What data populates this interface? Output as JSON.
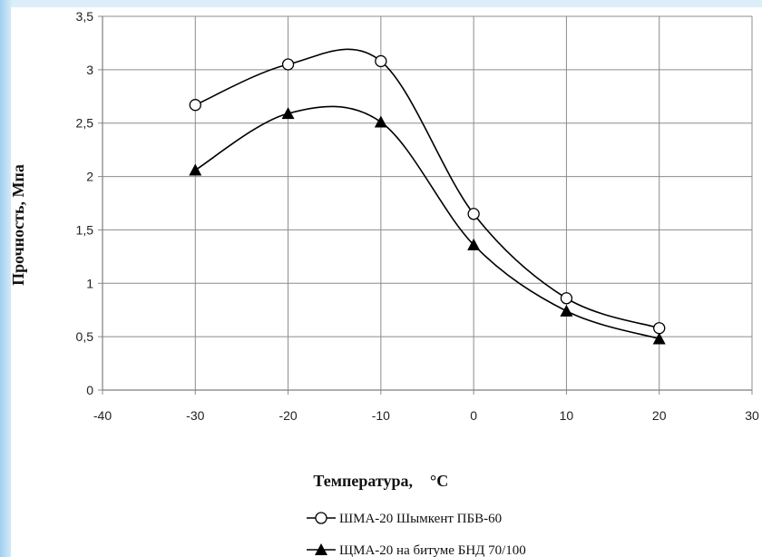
{
  "chart_data": {
    "type": "line",
    "xlabel": "Температура,",
    "xlabel_unit": "°С",
    "ylabel": "Прочность, Мпа",
    "xlim": [
      -40,
      30
    ],
    "ylim": [
      0,
      3.5
    ],
    "x_ticks": [
      "-40",
      "-30",
      "-20",
      "-10",
      "0",
      "10",
      "20",
      "30"
    ],
    "y_ticks": [
      "0",
      "0,5",
      "1",
      "1,5",
      "2",
      "2,5",
      "3",
      "3,5"
    ],
    "grid": true,
    "legend_position": "bottom",
    "series": [
      {
        "name": "ШМА-20 Шымкент ПБВ-60",
        "marker": "open-circle",
        "color": "#000000",
        "x": [
          -30,
          -20,
          -10,
          0,
          10,
          20
        ],
        "y": [
          2.67,
          3.05,
          3.08,
          1.65,
          0.86,
          0.58
        ]
      },
      {
        "name": "ЩМА-20 на битуме БНД 70/100",
        "marker": "filled-triangle",
        "color": "#000000",
        "x": [
          -30,
          -20,
          -10,
          0,
          10,
          20
        ],
        "y": [
          2.06,
          2.59,
          2.51,
          1.36,
          0.74,
          0.48
        ]
      }
    ]
  }
}
